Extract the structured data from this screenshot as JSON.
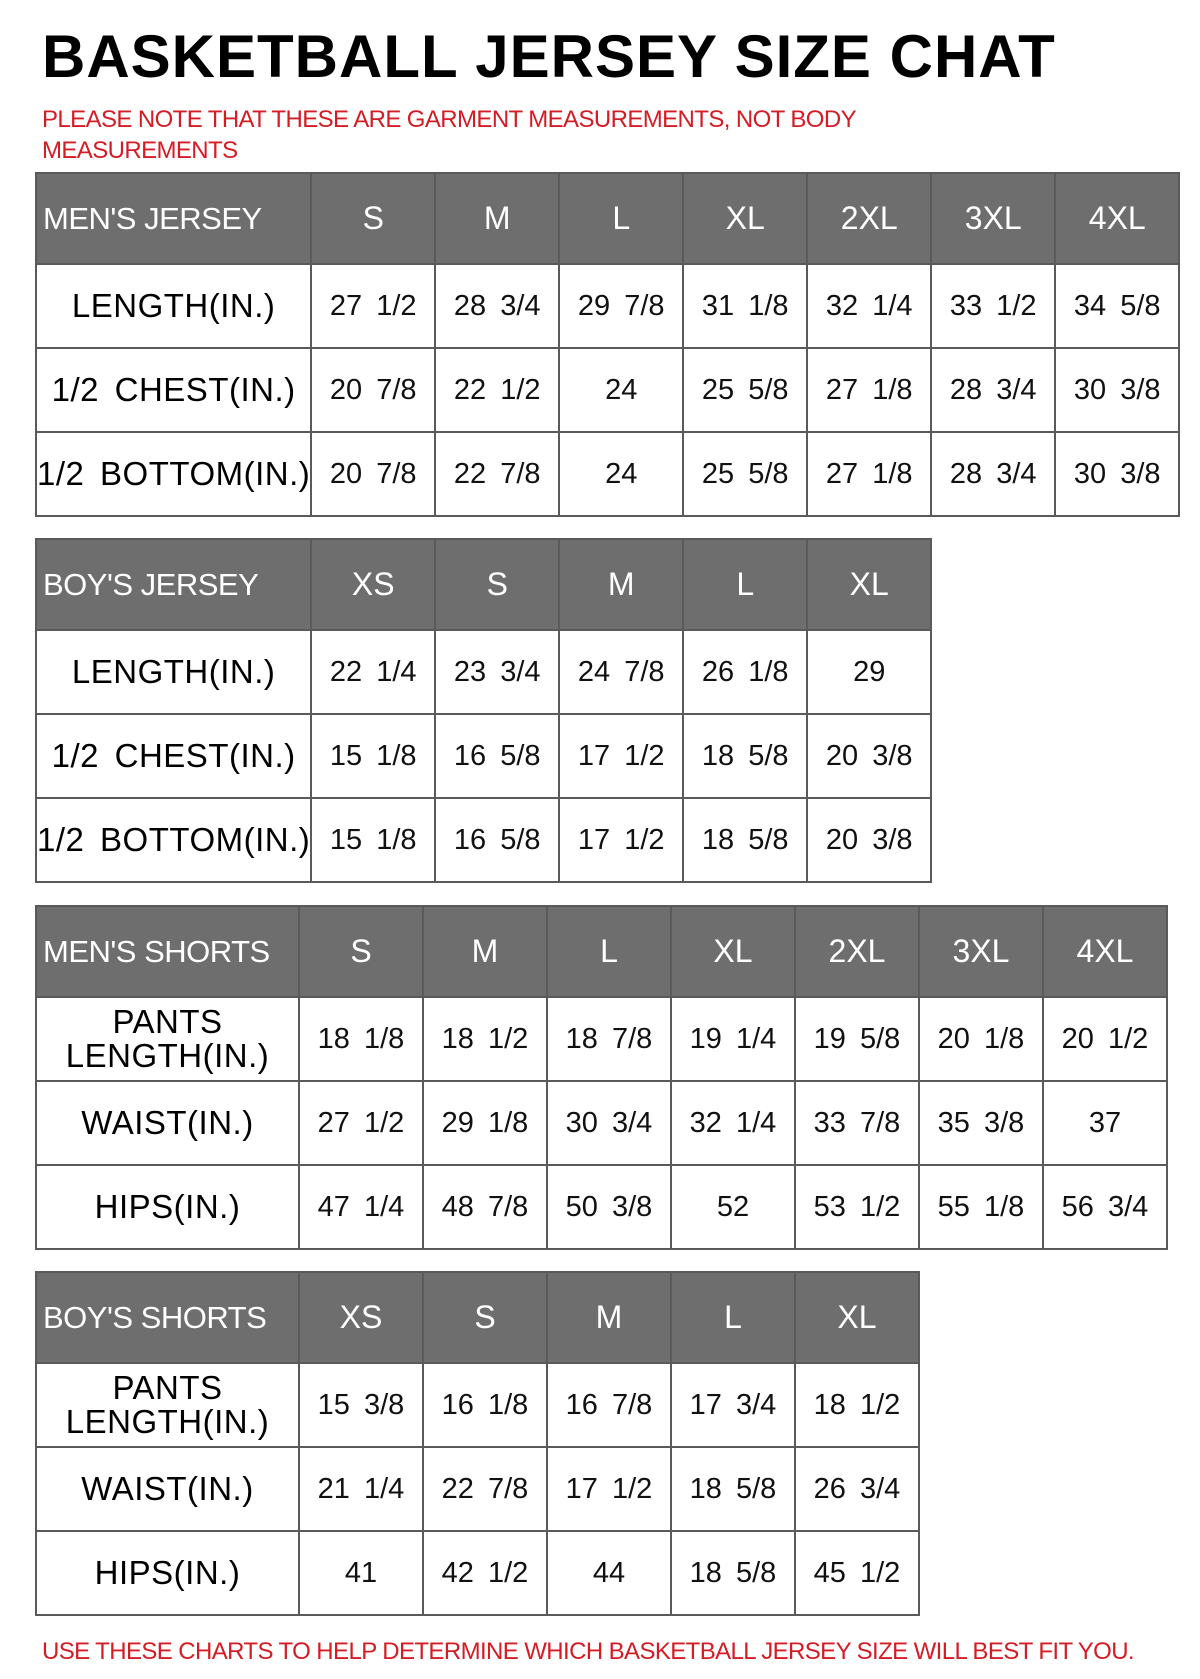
{
  "title": "BASKETBALL JERSEY SIZE CHAT",
  "note": "PLEASE NOTE THAT THESE ARE GARMENT MEASUREMENTS, NOT BODY MEASUREMENTS",
  "footer": "USE THESE CHARTS TO HELP DETERMINE WHICH BASKETBALL JERSEY SIZE WILL BEST FIT YOU.",
  "colors": {
    "header_bg": "#6e6e6e",
    "note_red": "#d41c24"
  },
  "tables": [
    {
      "name": "MEN'S JERSEY",
      "sizes": [
        "S",
        "M",
        "L",
        "XL",
        "2XL",
        "3XL",
        "4XL"
      ],
      "rows": [
        {
          "label": "LENGTH(IN.)",
          "values": [
            "27 1/2",
            "28 3/4",
            "29 7/8",
            "31 1/8",
            "32 1/4",
            "33 1/2",
            "34 5/8"
          ]
        },
        {
          "label": "1/2 CHEST(IN.)",
          "values": [
            "20 7/8",
            "22 1/2",
            "24",
            "25 5/8",
            "27 1/8",
            "28 3/4",
            "30 3/8"
          ]
        },
        {
          "label": "1/2 BOTTOM(IN.)",
          "values": [
            "20 7/8",
            "22 7/8",
            "24",
            "25 5/8",
            "27 1/8",
            "28 3/4",
            "30 3/8"
          ]
        }
      ]
    },
    {
      "name": "BOY'S JERSEY",
      "sizes": [
        "XS",
        "S",
        "M",
        "L",
        "XL"
      ],
      "rows": [
        {
          "label": "LENGTH(IN.)",
          "values": [
            "22 1/4",
            "23 3/4",
            "24 7/8",
            "26 1/8",
            "29"
          ]
        },
        {
          "label": "1/2 CHEST(IN.)",
          "values": [
            "15 1/8",
            "16 5/8",
            "17 1/2",
            "18 5/8",
            "20 3/8"
          ]
        },
        {
          "label": "1/2 BOTTOM(IN.)",
          "values": [
            "15 1/8",
            "16 5/8",
            "17 1/2",
            "18 5/8",
            "20 3/8"
          ]
        }
      ]
    },
    {
      "name": "MEN'S SHORTS",
      "sizes": [
        "S",
        "M",
        "L",
        "XL",
        "2XL",
        "3XL",
        "4XL"
      ],
      "rows": [
        {
          "label": "PANTS LENGTH(IN.)",
          "values": [
            "18 1/8",
            "18 1/2",
            "18 7/8",
            "19 1/4",
            "19 5/8",
            "20 1/8",
            "20 1/2"
          ]
        },
        {
          "label": "WAIST(IN.)",
          "values": [
            "27 1/2",
            "29 1/8",
            "30 3/4",
            "32 1/4",
            "33 7/8",
            "35 3/8",
            "37"
          ]
        },
        {
          "label": "HIPS(IN.)",
          "values": [
            "47 1/4",
            "48 7/8",
            "50 3/8",
            "52",
            "53 1/2",
            "55 1/8",
            "56 3/4"
          ]
        }
      ]
    },
    {
      "name": "BOY'S SHORTS",
      "sizes": [
        "XS",
        "S",
        "M",
        "L",
        "XL"
      ],
      "rows": [
        {
          "label": "PANTS LENGTH(IN.)",
          "values": [
            "15 3/8",
            "16 1/8",
            "16 7/8",
            "17 3/4",
            "18 1/2"
          ]
        },
        {
          "label": "WAIST(IN.)",
          "values": [
            "21 1/4",
            "22 7/8",
            "17 1/2",
            "18 5/8",
            "26 3/4"
          ]
        },
        {
          "label": "HIPS(IN.)",
          "values": [
            "41",
            "42 1/2",
            "44",
            "18 5/8",
            "45 1/2"
          ]
        }
      ]
    }
  ]
}
